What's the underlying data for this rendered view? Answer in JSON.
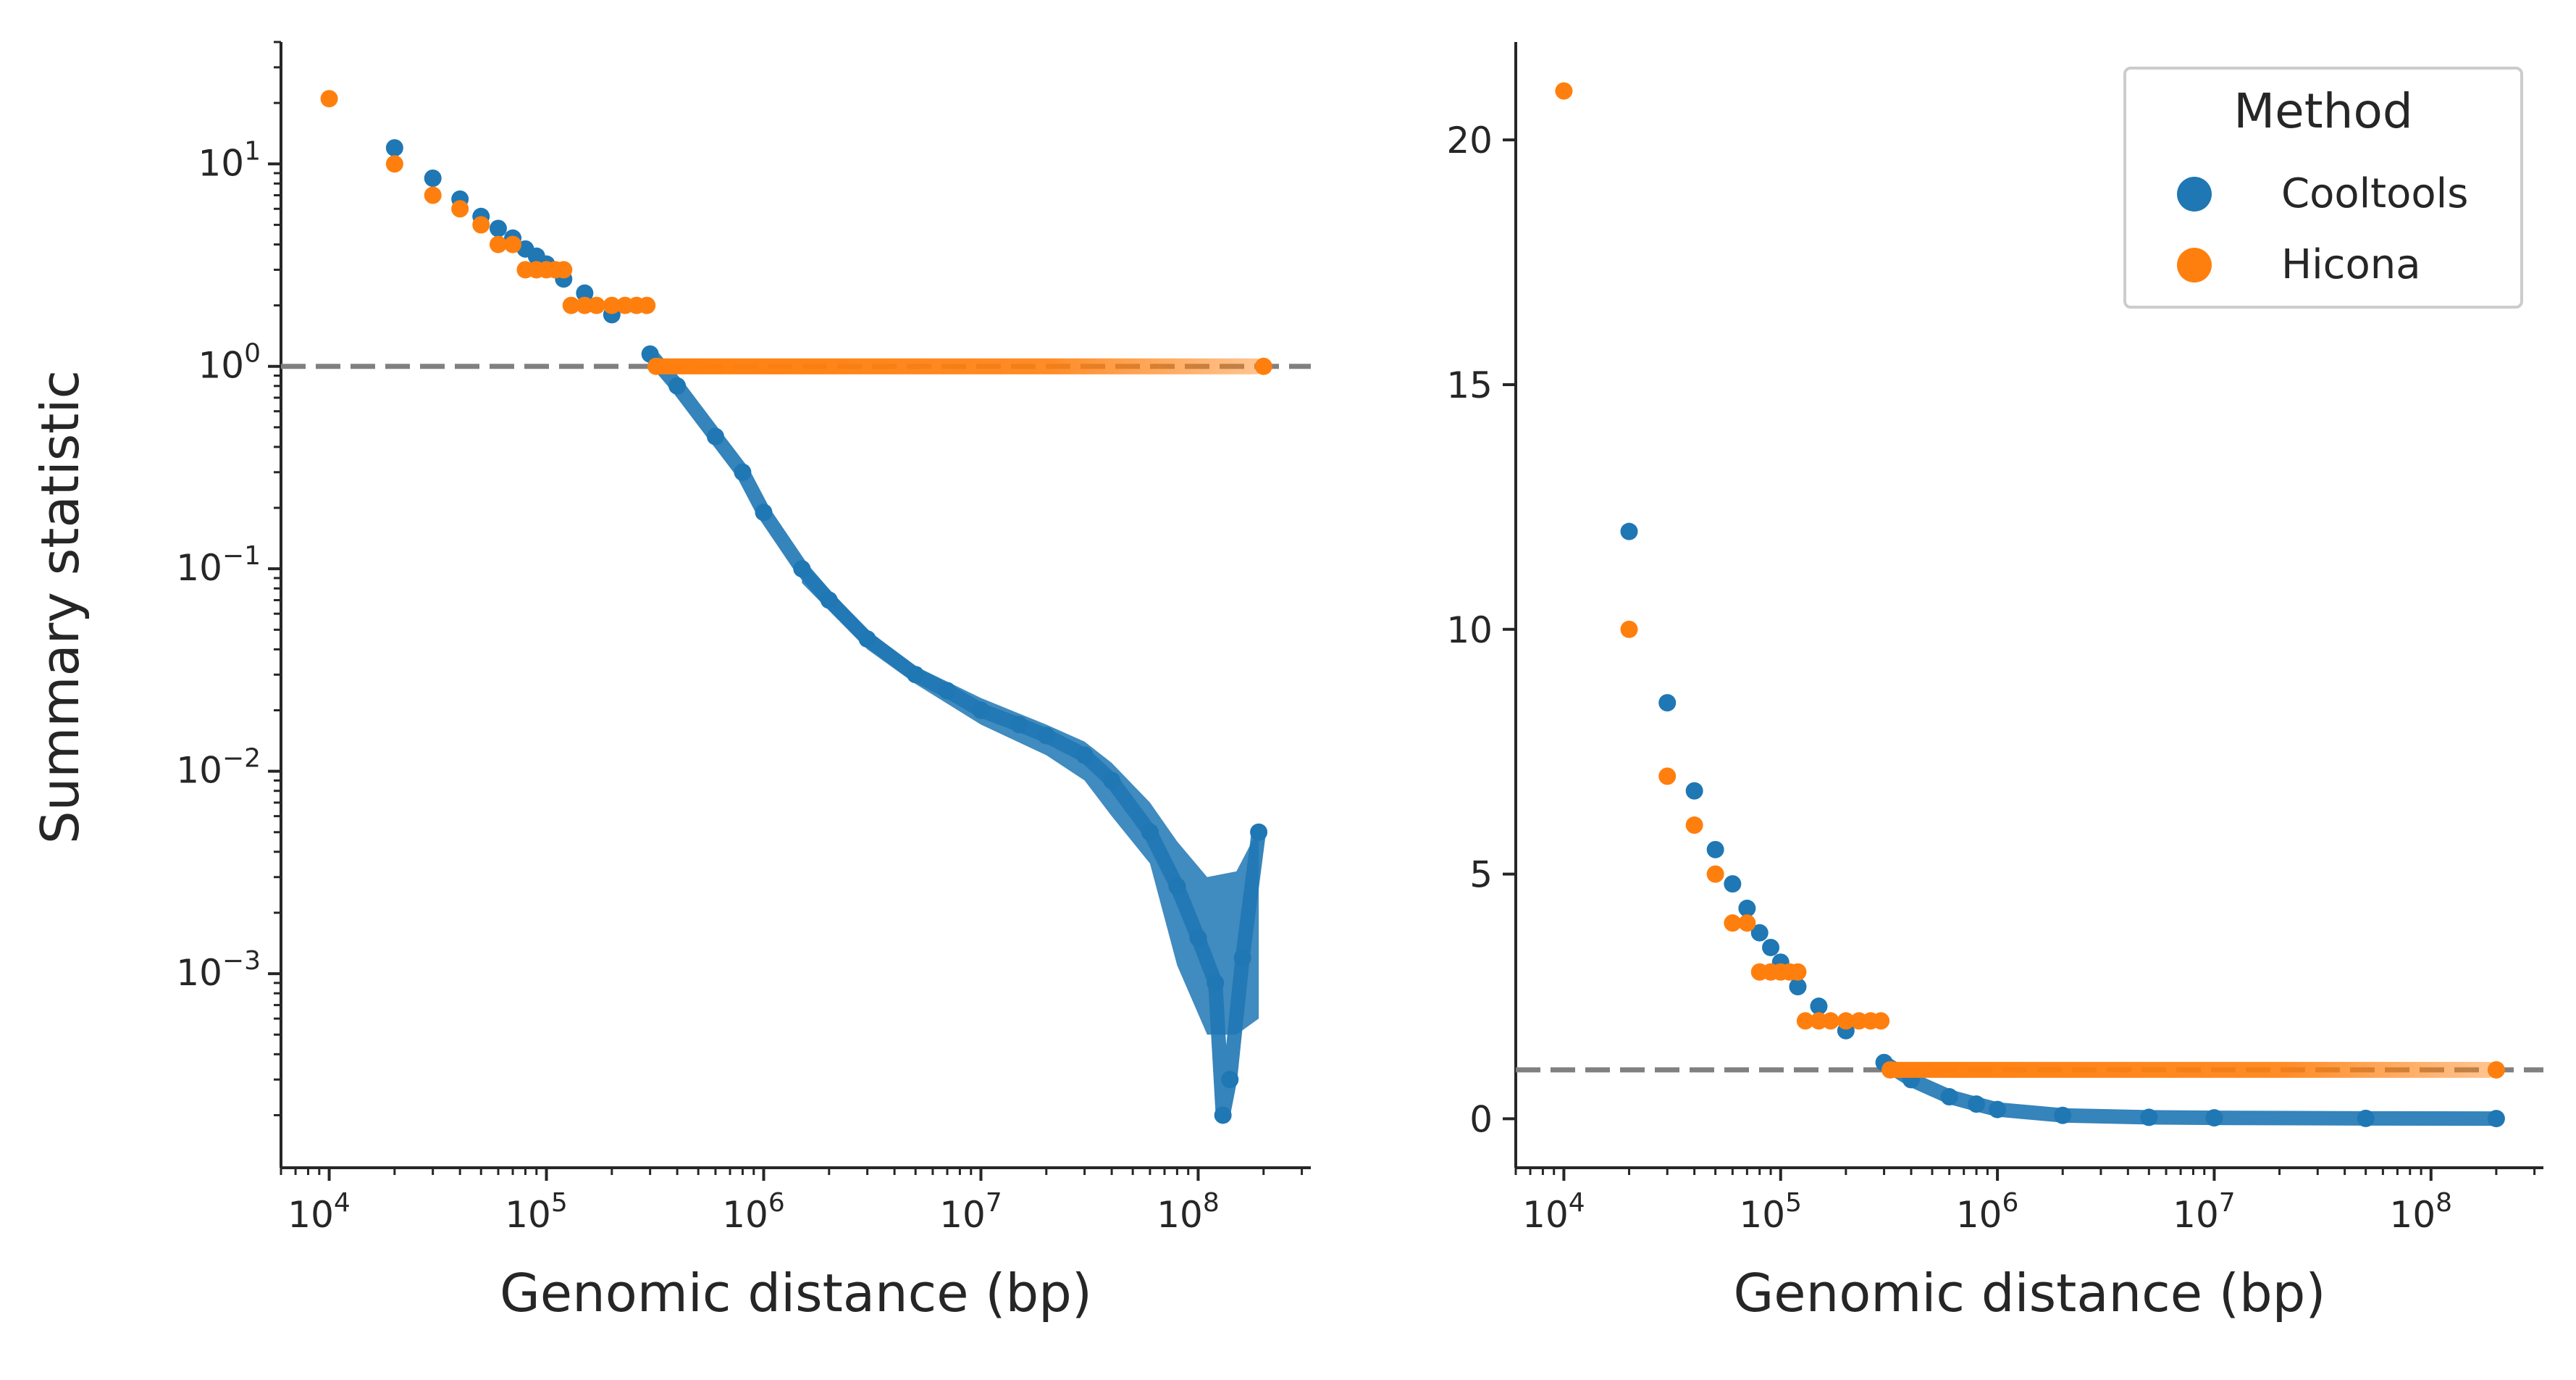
{
  "figure": {
    "ylabel": "Summary statistic",
    "legend": {
      "title": "Method",
      "entries": [
        {
          "name": "Cooltools",
          "color": "#1f77b4"
        },
        {
          "name": "Hicona",
          "color": "#ff7f0e"
        }
      ],
      "placement": "top-right of right panel"
    },
    "reference_line": {
      "y": 1,
      "color": "#808080",
      "style": "dashed"
    }
  },
  "chart_data": [
    {
      "type": "scatter",
      "panel": "left",
      "xscale": "log",
      "yscale": "log",
      "xlabel": "Genomic distance (bp)",
      "ylabel": "Summary statistic",
      "xlim": [
        6000,
        330000000
      ],
      "ylim": [
        0.00011,
        40
      ],
      "x_ticks": [
        {
          "base": "10",
          "exp": "4"
        },
        {
          "base": "10",
          "exp": "5"
        },
        {
          "base": "10",
          "exp": "6"
        },
        {
          "base": "10",
          "exp": "7"
        },
        {
          "base": "10",
          "exp": "8"
        }
      ],
      "y_ticks": [
        {
          "base": "10",
          "exp": "1"
        },
        {
          "base": "10",
          "exp": "0"
        },
        {
          "base": "10",
          "exp": "−1"
        },
        {
          "base": "10",
          "exp": "−2"
        },
        {
          "base": "10",
          "exp": "−3"
        }
      ],
      "series": [
        {
          "name": "Cooltools",
          "color": "#1f77b4",
          "points": [
            [
              20000,
              12
            ],
            [
              30000,
              8.5
            ],
            [
              40000,
              6.7
            ],
            [
              50000,
              5.5
            ],
            [
              60000,
              4.8
            ],
            [
              70000,
              4.3
            ],
            [
              80000,
              3.8
            ],
            [
              90000,
              3.5
            ],
            [
              100000,
              3.2
            ],
            [
              120000,
              2.7
            ],
            [
              150000,
              2.3
            ],
            [
              200000,
              1.8
            ],
            [
              300000,
              1.15
            ],
            [
              400000,
              0.8
            ],
            [
              600000,
              0.45
            ],
            [
              800000,
              0.3
            ],
            [
              1000000,
              0.19
            ],
            [
              1500000,
              0.1
            ],
            [
              2000000,
              0.07
            ],
            [
              3000000,
              0.045
            ],
            [
              5000000,
              0.03
            ],
            [
              7000000,
              0.025
            ],
            [
              10000000,
              0.02
            ],
            [
              15000000,
              0.017
            ],
            [
              20000000,
              0.015
            ],
            [
              30000000,
              0.012
            ],
            [
              40000000,
              0.009
            ],
            [
              60000000,
              0.005
            ],
            [
              80000000,
              0.0027
            ],
            [
              100000000,
              0.0015
            ],
            [
              120000000,
              0.0009
            ],
            [
              130000000,
              0.0002
            ],
            [
              140000000,
              0.0003
            ],
            [
              160000000,
              0.0012
            ],
            [
              190000000,
              0.005
            ]
          ],
          "band": [
            [
              1500000,
              0.085,
              0.11
            ],
            [
              3000000,
              0.04,
              0.05
            ],
            [
              5000000,
              0.027,
              0.033
            ],
            [
              10000000,
              0.017,
              0.023
            ],
            [
              20000000,
              0.012,
              0.017
            ],
            [
              30000000,
              0.009,
              0.014
            ],
            [
              40000000,
              0.006,
              0.011
            ],
            [
              60000000,
              0.0035,
              0.007
            ],
            [
              80000000,
              0.0011,
              0.0045
            ],
            [
              110000000,
              0.0005,
              0.003
            ],
            [
              150000000,
              0.0005,
              0.0032
            ],
            [
              190000000,
              0.0006,
              0.0052
            ]
          ]
        },
        {
          "name": "Hicona",
          "color": "#ff7f0e",
          "points": [
            [
              10000,
              21
            ],
            [
              20000,
              10
            ],
            [
              30000,
              7
            ],
            [
              40000,
              6
            ],
            [
              50000,
              5
            ],
            [
              60000,
              4
            ],
            [
              70000,
              4
            ],
            [
              80000,
              3
            ],
            [
              90000,
              3
            ],
            [
              100000,
              3
            ],
            [
              110000,
              3
            ],
            [
              120000,
              3
            ],
            [
              130000,
              2
            ],
            [
              150000,
              2
            ],
            [
              170000,
              2
            ],
            [
              200000,
              2
            ],
            [
              230000,
              2
            ],
            [
              260000,
              2
            ],
            [
              290000,
              2
            ],
            [
              320000,
              1
            ],
            [
              200000000,
              1
            ]
          ],
          "constant_segment": {
            "x_from": 300000,
            "x_to": 200000000,
            "y": 1
          }
        }
      ]
    },
    {
      "type": "scatter",
      "panel": "right",
      "xscale": "log",
      "yscale": "linear",
      "xlabel": "Genomic distance (bp)",
      "ylabel": "",
      "xlim": [
        6000,
        330000000
      ],
      "ylim": [
        -1,
        22
      ],
      "x_ticks": [
        {
          "base": "10",
          "exp": "4"
        },
        {
          "base": "10",
          "exp": "5"
        },
        {
          "base": "10",
          "exp": "6"
        },
        {
          "base": "10",
          "exp": "7"
        },
        {
          "base": "10",
          "exp": "8"
        }
      ],
      "y_ticks": [
        "0",
        "5",
        "10",
        "15",
        "20"
      ],
      "series": [
        {
          "name": "Cooltools",
          "color": "#1f77b4",
          "points": [
            [
              20000,
              12
            ],
            [
              30000,
              8.5
            ],
            [
              40000,
              6.7
            ],
            [
              50000,
              5.5
            ],
            [
              60000,
              4.8
            ],
            [
              70000,
              4.3
            ],
            [
              80000,
              3.8
            ],
            [
              90000,
              3.5
            ],
            [
              100000,
              3.2
            ],
            [
              120000,
              2.7
            ],
            [
              150000,
              2.3
            ],
            [
              200000,
              1.8
            ],
            [
              300000,
              1.15
            ],
            [
              400000,
              0.8
            ],
            [
              600000,
              0.45
            ],
            [
              800000,
              0.3
            ],
            [
              1000000,
              0.19
            ],
            [
              2000000,
              0.07
            ],
            [
              5000000,
              0.03
            ],
            [
              10000000,
              0.02
            ],
            [
              50000000,
              0.008
            ],
            [
              200000000,
              0.005
            ]
          ]
        },
        {
          "name": "Hicona",
          "color": "#ff7f0e",
          "points": [
            [
              10000,
              21
            ],
            [
              20000,
              10
            ],
            [
              30000,
              7
            ],
            [
              40000,
              6
            ],
            [
              50000,
              5
            ],
            [
              60000,
              4
            ],
            [
              70000,
              4
            ],
            [
              80000,
              3
            ],
            [
              90000,
              3
            ],
            [
              100000,
              3
            ],
            [
              110000,
              3
            ],
            [
              120000,
              3
            ],
            [
              130000,
              2
            ],
            [
              150000,
              2
            ],
            [
              170000,
              2
            ],
            [
              200000,
              2
            ],
            [
              230000,
              2
            ],
            [
              260000,
              2
            ],
            [
              290000,
              2
            ],
            [
              320000,
              1
            ],
            [
              200000000,
              1
            ]
          ],
          "constant_segment": {
            "x_from": 300000,
            "x_to": 200000000,
            "y": 1
          }
        }
      ]
    }
  ]
}
